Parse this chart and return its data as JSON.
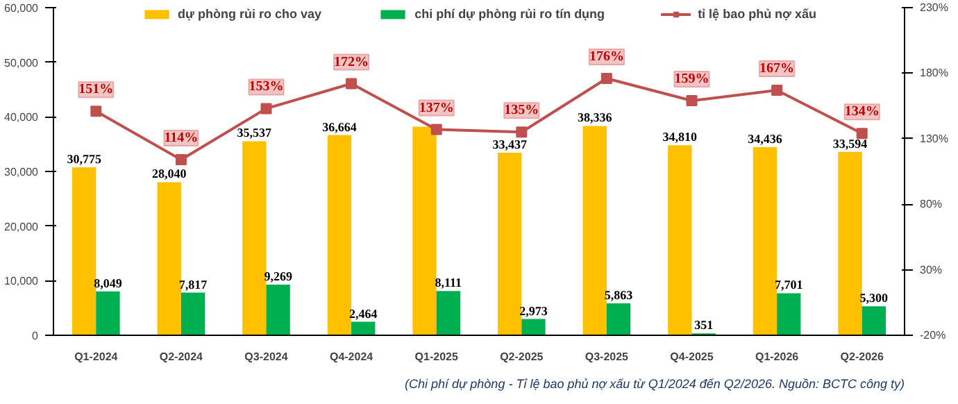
{
  "chart_data": {
    "type": "bar",
    "categories": [
      "Q1-2024",
      "Q2-2024",
      "Q3-2024",
      "Q4-2024",
      "Q1-2025",
      "Q2-2025",
      "Q3-2025",
      "Q4-2025",
      "Q1-2026",
      "Q2-2026"
    ],
    "series": [
      {
        "name": "dự phòng rủi ro cho vay",
        "color": "#ffc000",
        "values": [
          30775,
          28040,
          35537,
          36664,
          38200,
          33437,
          38336,
          34810,
          34436,
          33594
        ],
        "value_labels": [
          "30,775",
          "28,040",
          "35,537",
          "36,664",
          null,
          "33,437",
          "38,336",
          "34,810",
          "34,436",
          "33,594"
        ]
      },
      {
        "name": "chi phí dự phòng rủi ro tín dụng",
        "color": "#00b050",
        "values": [
          8049,
          7817,
          9269,
          2464,
          8111,
          2973,
          5863,
          351,
          7701,
          5300
        ],
        "value_labels": [
          "8,049",
          "7,817",
          "9,269",
          "2,464",
          "8,111",
          "2,973",
          "5,863",
          "351",
          "7,701",
          "5,300"
        ]
      },
      {
        "name": "tỉ lệ bao phủ nợ xấu",
        "color": "#c0504d",
        "type": "line",
        "axis": "y2",
        "marker": "square",
        "values": [
          151,
          114,
          153,
          172,
          137,
          135,
          176,
          159,
          167,
          134
        ],
        "value_labels": [
          "151%",
          "114%",
          "153%",
          "172%",
          "137%",
          "135%",
          "176%",
          "159%",
          "167%",
          "134%"
        ]
      }
    ],
    "ylim": [
      0,
      60000
    ],
    "yticks": [
      {
        "value": 0,
        "label": "0"
      },
      {
        "value": 10000,
        "label": "10,000"
      },
      {
        "value": 20000,
        "label": "20,000"
      },
      {
        "value": 30000,
        "label": "30,000"
      },
      {
        "value": 40000,
        "label": "40,000"
      },
      {
        "value": 50000,
        "label": "50,000"
      },
      {
        "value": 60000,
        "label": "60,000"
      }
    ],
    "y2lim": [
      -20,
      230
    ],
    "y2ticks": [
      {
        "value": -20,
        "label": "-20%"
      },
      {
        "value": 30,
        "label": "30%"
      },
      {
        "value": 80,
        "label": "80%"
      },
      {
        "value": 130,
        "label": "130%"
      },
      {
        "value": 180,
        "label": "180%"
      },
      {
        "value": 230,
        "label": "230%"
      }
    ],
    "grid": false,
    "legend": "top",
    "annotations": [
      "(Chi phí dự phòng - Tỉ lệ bao phủ nợ xấu từ Q1/2024 đến Q2/2026. Nguồn: BCTC công ty)"
    ]
  }
}
